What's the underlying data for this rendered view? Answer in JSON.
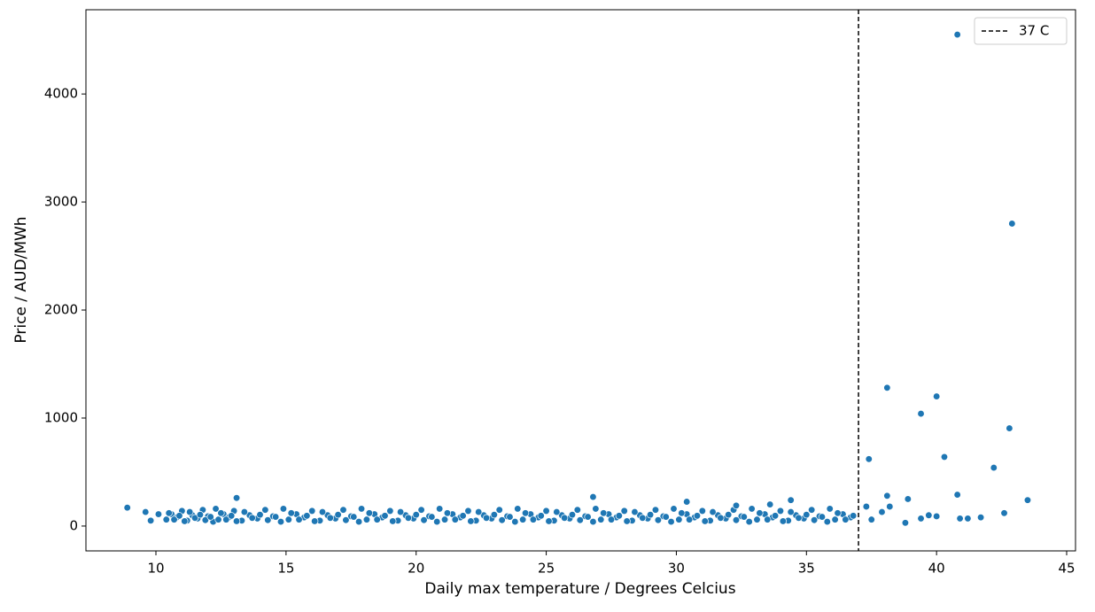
{
  "chart_data": {
    "type": "scatter",
    "xlabel": "Daily max temperature / Degrees Celcius",
    "ylabel": "Price / AUD/MWh",
    "xlim": [
      7.31,
      45.34
    ],
    "ylim": [
      -230,
      4780
    ],
    "xticks": [
      10,
      15,
      20,
      25,
      30,
      35,
      40,
      45
    ],
    "yticks": [
      0,
      1000,
      2000,
      3000,
      4000
    ],
    "legend": "upper right",
    "vline": {
      "x": 37,
      "label": "37 C",
      "color": "#000000"
    },
    "series": [
      {
        "color": "#1f77b4",
        "x": [
          10.4,
          10.6,
          10.8,
          11.0,
          11.2,
          11.4,
          11.6,
          11.8,
          12.0,
          12.2,
          12.4,
          12.6,
          12.8,
          13.0,
          13.3,
          13.6,
          13.9,
          14.2,
          14.5,
          14.8,
          15.1,
          15.4,
          15.7,
          16.0,
          16.3,
          16.6,
          16.9,
          17.2,
          17.5,
          17.8,
          18.1,
          18.4,
          18.7,
          19.0,
          19.3,
          19.6,
          19.9,
          20.2,
          20.5,
          20.8,
          21.1,
          21.4,
          21.7,
          22.0,
          22.3,
          22.6,
          22.9,
          23.2,
          23.5,
          23.8,
          24.1,
          24.4,
          24.7,
          25.0,
          25.3,
          25.6,
          25.9,
          26.2,
          26.5,
          26.8,
          27.1,
          27.4,
          27.7,
          28.0,
          28.3,
          28.6,
          28.9,
          29.2,
          29.5,
          29.8,
          30.1,
          30.4,
          30.7,
          31.0,
          31.3,
          31.6,
          31.9,
          32.2,
          32.5,
          32.8,
          33.1,
          33.4,
          33.7,
          34.0,
          34.3,
          34.6,
          34.9,
          35.2,
          35.5,
          35.8,
          36.1,
          36.4,
          36.7,
          10.5,
          10.7,
          10.9,
          11.1,
          11.3,
          11.5,
          11.7,
          11.9,
          12.1,
          12.3,
          12.5,
          12.7,
          12.9,
          13.1,
          13.4,
          13.7,
          14.0,
          14.3,
          14.6,
          14.9,
          15.2,
          15.5,
          15.8,
          16.1,
          16.4,
          16.7,
          17.0,
          17.3,
          17.6,
          17.9,
          18.2,
          18.5,
          18.8,
          19.1,
          19.4,
          19.7,
          20.0,
          20.3,
          20.6,
          20.9,
          21.2,
          21.5,
          21.8,
          22.1,
          22.4,
          22.7,
          23.0,
          23.3,
          23.6,
          23.9,
          24.2,
          24.5,
          24.8,
          25.1,
          25.4,
          25.7,
          26.0,
          26.3,
          26.6,
          26.9,
          27.2,
          27.5,
          27.8,
          28.1,
          28.4,
          28.7,
          29.0,
          29.3,
          29.6,
          29.9,
          30.2,
          30.5,
          30.8,
          31.1,
          31.4,
          31.7,
          32.0,
          32.3,
          32.6,
          32.9,
          33.2,
          33.5,
          33.8,
          34.1,
          34.4,
          34.7,
          35.0,
          35.3,
          35.6,
          35.9,
          36.2,
          36.5,
          36.8,
          40.8,
          42.9,
          38.1,
          40.0,
          39.4,
          42.8,
          40.3,
          37.4,
          42.2,
          40.8,
          38.1,
          38.9,
          43.5,
          13.1,
          26.8,
          30.4,
          34.4,
          33.6,
          32.3,
          8.9,
          9.6,
          9.8,
          10.1,
          37.9,
          38.2,
          38.8,
          39.4,
          39.7,
          40.0,
          40.9,
          41.2,
          41.7,
          42.6,
          37.5,
          37.3
        ],
        "values": [
          60,
          110,
          80,
          140,
          50,
          100,
          70,
          150,
          90,
          40,
          60,
          110,
          80,
          140,
          50,
          100,
          70,
          150,
          90,
          40,
          60,
          110,
          80,
          140,
          50,
          100,
          70,
          150,
          90,
          40,
          60,
          110,
          80,
          140,
          50,
          100,
          70,
          150,
          90,
          40,
          60,
          110,
          80,
          140,
          50,
          100,
          70,
          150,
          90,
          40,
          60,
          110,
          80,
          140,
          50,
          100,
          70,
          150,
          90,
          40,
          60,
          110,
          80,
          140,
          50,
          100,
          70,
          150,
          90,
          40,
          60,
          110,
          80,
          140,
          50,
          100,
          70,
          150,
          90,
          40,
          60,
          110,
          80,
          140,
          50,
          100,
          70,
          150,
          90,
          40,
          60,
          110,
          80,
          120,
          60,
          95,
          45,
          130,
          75,
          105,
          55,
          85,
          160,
          120,
          60,
          95,
          45,
          130,
          75,
          105,
          55,
          85,
          160,
          120,
          60,
          95,
          45,
          130,
          75,
          105,
          55,
          85,
          160,
          120,
          60,
          95,
          45,
          130,
          75,
          105,
          55,
          85,
          160,
          120,
          60,
          95,
          45,
          130,
          75,
          105,
          55,
          85,
          160,
          120,
          60,
          95,
          45,
          130,
          75,
          105,
          55,
          85,
          160,
          120,
          60,
          95,
          45,
          130,
          75,
          105,
          55,
          85,
          160,
          120,
          60,
          95,
          45,
          130,
          75,
          105,
          55,
          85,
          160,
          120,
          60,
          95,
          45,
          130,
          75,
          105,
          55,
          85,
          160,
          120,
          60,
          95,
          4550,
          2800,
          1280,
          1200,
          1040,
          905,
          640,
          620,
          540,
          290,
          280,
          250,
          240,
          260,
          270,
          225,
          240,
          200,
          190,
          170,
          130,
          50,
          110,
          130,
          180,
          30,
          70,
          100,
          90,
          70,
          70,
          80,
          120,
          60,
          180
        ]
      }
    ]
  }
}
